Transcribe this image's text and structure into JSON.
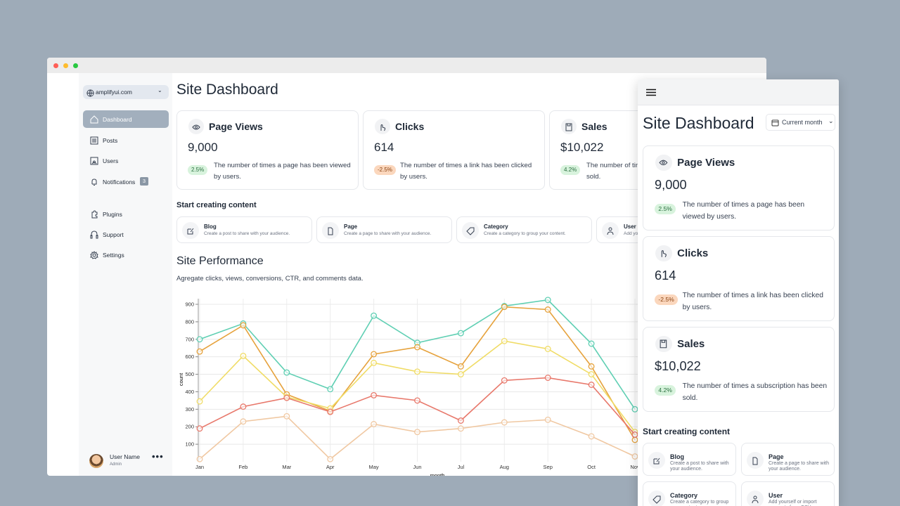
{
  "sidebar": {
    "site": "amplifyui.com",
    "nav": [
      "Dashboard",
      "Posts",
      "Users",
      "Notifications",
      "Plugins",
      "Support",
      "Settings"
    ],
    "notification_count": 3,
    "user": {
      "name": "User Name",
      "role": "Admin"
    }
  },
  "header": {
    "title": "Site Dashboard",
    "period": "Current month"
  },
  "stats": [
    {
      "title": "Page Views",
      "value": "9,000",
      "change": "2.5%",
      "description": "The number of times a page has been viewed by users."
    },
    {
      "title": "Clicks",
      "value": "614",
      "change": "-2.5%",
      "description": "The number of times a link has been clicked by users."
    },
    {
      "title": "Sales",
      "value": "$10,022",
      "change": "4.2%",
      "description": "The number of times a subscription has been sold."
    }
  ],
  "create": {
    "title": "Start creating content",
    "items": [
      {
        "title": "Blog",
        "description": "Create a post to share with your audience."
      },
      {
        "title": "Page",
        "description": "Create a page to share with your audience."
      },
      {
        "title": "Category",
        "description": "Create a category to group your content."
      },
      {
        "title": "User",
        "description": "Add yourself or import accounts from CSV."
      }
    ]
  },
  "performance": {
    "title": "Site Performance",
    "subtitle": "Agregate clicks, views, conversions, CTR, and comments data."
  },
  "chart_data": {
    "type": "line",
    "x_label": "month",
    "y_label": "count",
    "categories": [
      "Jan",
      "Feb",
      "Mar",
      "Apr",
      "May",
      "Jun",
      "Jul",
      "Aug",
      "Sep",
      "Oct",
      "Nov"
    ],
    "ylim": [
      0,
      900
    ],
    "yticks": [
      100,
      200,
      300,
      400,
      500,
      600,
      700,
      800,
      900
    ],
    "grid": true,
    "series": [
      {
        "color": "#5fcfb3",
        "values": [
          700,
          790,
          510,
          415,
          835,
          680,
          735,
          890,
          925,
          675,
          300
        ]
      },
      {
        "color": "#e6a23c",
        "values": [
          630,
          780,
          385,
          290,
          615,
          655,
          545,
          885,
          870,
          545,
          125
        ]
      },
      {
        "color": "#f0dc66",
        "values": [
          345,
          605,
          370,
          305,
          565,
          515,
          500,
          690,
          645,
          500,
          170
        ]
      },
      {
        "color": "#e8786b",
        "values": [
          190,
          315,
          365,
          285,
          380,
          350,
          235,
          465,
          480,
          440,
          155
        ]
      },
      {
        "color": "#f0c8a2",
        "values": [
          15,
          230,
          260,
          15,
          215,
          170,
          190,
          225,
          240,
          145,
          30
        ]
      }
    ]
  }
}
